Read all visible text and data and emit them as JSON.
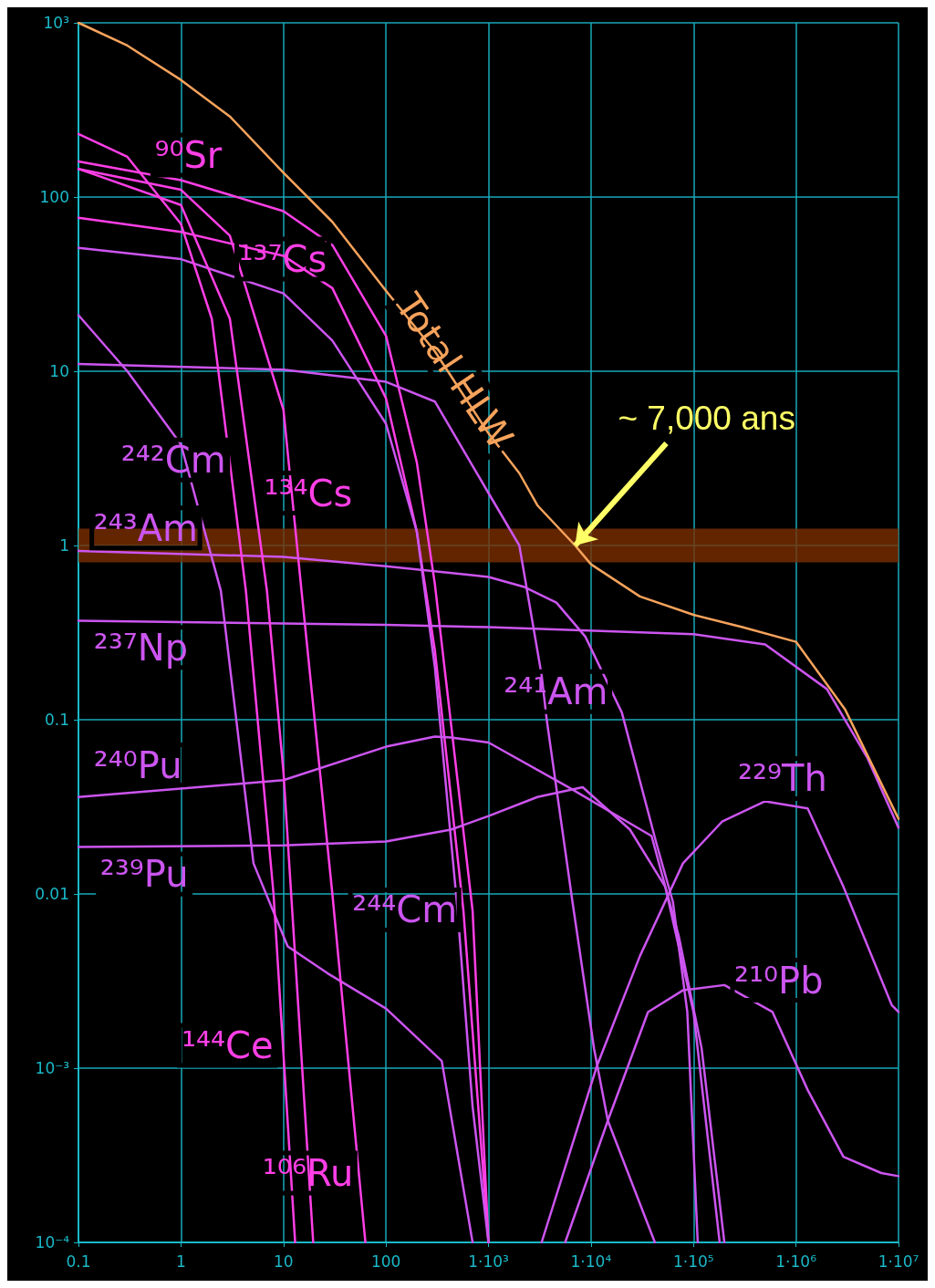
{
  "chart_data": {
    "type": "line",
    "log": "xy",
    "grid": true,
    "marker": "none",
    "line_style": "solid",
    "xlim": [
      0.1,
      10000000
    ],
    "ylim": [
      0.0001,
      1000
    ],
    "xticks": [
      0.1,
      1,
      10,
      100,
      {
        "value": 1000,
        "label": "1·10³"
      },
      {
        "value": 10000,
        "label": "1·10⁴"
      },
      {
        "value": 100000,
        "label": "1·10⁵"
      },
      {
        "value": 1000000,
        "label": "1·10⁶"
      },
      {
        "value": 10000000,
        "label": "1·10⁷"
      }
    ],
    "yticks": [
      {
        "value": 0.0001,
        "label": "10⁻⁴"
      },
      {
        "value": 0.001,
        "label": "10⁻³"
      },
      0.01,
      0.1,
      1,
      10,
      100,
      {
        "value": 1000,
        "label": "10³"
      }
    ],
    "bands": [
      {
        "axis": "y",
        "from": 0.8,
        "to": 1.25,
        "color": "#7a2e00"
      }
    ],
    "annotations": [
      {
        "text": "~ 7,000 ans",
        "x": 7000,
        "y": 1
      }
    ],
    "series": [
      {
        "name": "Total HLW",
        "color": "#f7a35c",
        "x": [
          0.1,
          0.3,
          1,
          3,
          10,
          30,
          100,
          300,
          1000,
          2000,
          3000,
          7000,
          10000,
          30000,
          100000,
          300000,
          1000000,
          3000000,
          10000000
        ],
        "values": [
          1000,
          740,
          470,
          290,
          138,
          72,
          29,
          13,
          4.4,
          2.6,
          1.7,
          1.0,
          0.78,
          0.51,
          0.4,
          0.34,
          0.28,
          0.115,
          0.027
        ]
      },
      {
        "name": "⁹⁰Sr",
        "color": "#ff3fe6",
        "x": [
          0.1,
          1,
          10,
          30,
          100,
          200,
          300,
          700,
          1000
        ],
        "values": [
          160,
          125,
          83,
          53,
          16,
          3,
          0.6,
          0.008,
          0.0001
        ]
      },
      {
        "name": "¹³⁷Cs",
        "color": "#ff3fe6",
        "x": [
          0.1,
          1,
          10,
          30,
          100,
          200,
          300,
          570,
          1000
        ],
        "values": [
          76,
          63,
          46,
          30,
          7,
          1.2,
          0.25,
          0.008,
          0.0001
        ]
      },
      {
        "name": "²⁴²Cm",
        "color": "#cc55f0",
        "x": [
          0.1,
          0.3,
          1,
          2.45,
          5.1,
          11,
          27,
          100,
          350,
          700
        ],
        "values": [
          21,
          10,
          3.8,
          0.55,
          0.015,
          0.005,
          0.0035,
          0.0022,
          0.0011,
          0.0001
        ]
      },
      {
        "name": "¹³⁴Cs",
        "color": "#ff3fe6",
        "x": [
          0.1,
          1,
          3,
          10,
          15,
          30,
          63
        ],
        "values": [
          145,
          110,
          60,
          6,
          0.55,
          0.01,
          0.0001
        ]
      },
      {
        "name": "²⁴³Am",
        "color": "#cc55f0",
        "x": [
          0.1,
          10,
          100,
          1000,
          2200,
          4600,
          8800,
          20000,
          44000,
          63000,
          87000,
          110000
        ],
        "values": [
          0.93,
          0.86,
          0.76,
          0.66,
          0.58,
          0.47,
          0.3,
          0.11,
          0.019,
          0.009,
          0.0021,
          0.0001
        ]
      },
      {
        "name": "²³⁷Np",
        "color": "#cc55f0",
        "x": [
          0.1,
          100,
          1000,
          100000,
          500000,
          2000000,
          5000000,
          10000000
        ],
        "values": [
          0.37,
          0.35,
          0.34,
          0.31,
          0.27,
          0.15,
          0.06,
          0.024
        ]
      },
      {
        "name": "²⁴⁰Pu",
        "color": "#cc55f0",
        "x": [
          0.1,
          10,
          100,
          300,
          430,
          1000,
          6000,
          39000,
          72000,
          120000,
          200000
        ],
        "values": [
          0.036,
          0.045,
          0.07,
          0.08,
          0.079,
          0.074,
          0.041,
          0.0215,
          0.0057,
          0.0013,
          0.0001
        ]
      },
      {
        "name": "²³⁹Pu",
        "color": "#cc55f0",
        "x": [
          0.1,
          10,
          100,
          430,
          1000,
          3000,
          8300,
          24000,
          53000,
          100000,
          180000
        ],
        "values": [
          0.0186,
          0.019,
          0.02,
          0.0234,
          0.028,
          0.036,
          0.041,
          0.0234,
          0.011,
          0.0021,
          0.0001
        ]
      },
      {
        "name": "²⁴¹Am",
        "color": "#cc55f0",
        "x": [
          0.1,
          10,
          100,
          300,
          1000,
          2000,
          3300,
          3700,
          6600,
          10700,
          14600,
          42000
        ],
        "values": [
          11,
          10.2,
          8.7,
          6.7,
          2.0,
          1.0,
          0.18,
          0.1,
          0.009,
          0.0013,
          0.0005,
          0.0001
        ]
      },
      {
        "name": "²⁴⁴Cm",
        "color": "#cc55f0",
        "x": [
          0.1,
          1,
          10,
          30,
          100,
          200,
          300,
          500,
          700,
          1000
        ],
        "values": [
          51,
          44,
          28,
          15,
          5,
          1.2,
          0.2,
          0.008,
          0.0006,
          0.0001
        ]
      },
      {
        "name": "¹⁴⁴Ce",
        "color": "#ff3fe6",
        "x": [
          0.1,
          0.3,
          1,
          2,
          4.3,
          8,
          13
        ],
        "values": [
          230,
          170,
          70,
          20,
          0.55,
          0.01,
          0.0001
        ]
      },
      {
        "name": "¹⁰⁶Ru",
        "color": "#ff3fe6",
        "x": [
          0.1,
          1,
          3,
          6.9,
          10,
          19.5
        ],
        "values": [
          145,
          90,
          20,
          0.55,
          0.05,
          0.0001
        ]
      },
      {
        "name": "²²⁹Th",
        "color": "#cc55f0",
        "x": [
          3300,
          11500,
          30000,
          79000,
          190000,
          500000,
          1300000,
          2900000,
          8600000,
          10000000
        ],
        "values": [
          0.0001,
          0.00104,
          0.0044,
          0.015,
          0.026,
          0.034,
          0.031,
          0.011,
          0.0023,
          0.0021
        ]
      },
      {
        "name": "²¹⁰Pb",
        "color": "#cc55f0",
        "x": [
          5600,
          14600,
          36000,
          79000,
          200000,
          590000,
          1300000,
          2900000,
          6800000,
          10000000
        ],
        "values": [
          0.0001,
          0.0005,
          0.0021,
          0.0028,
          0.003,
          0.0021,
          0.00075,
          0.00031,
          0.00025,
          0.00024
        ]
      }
    ]
  }
}
